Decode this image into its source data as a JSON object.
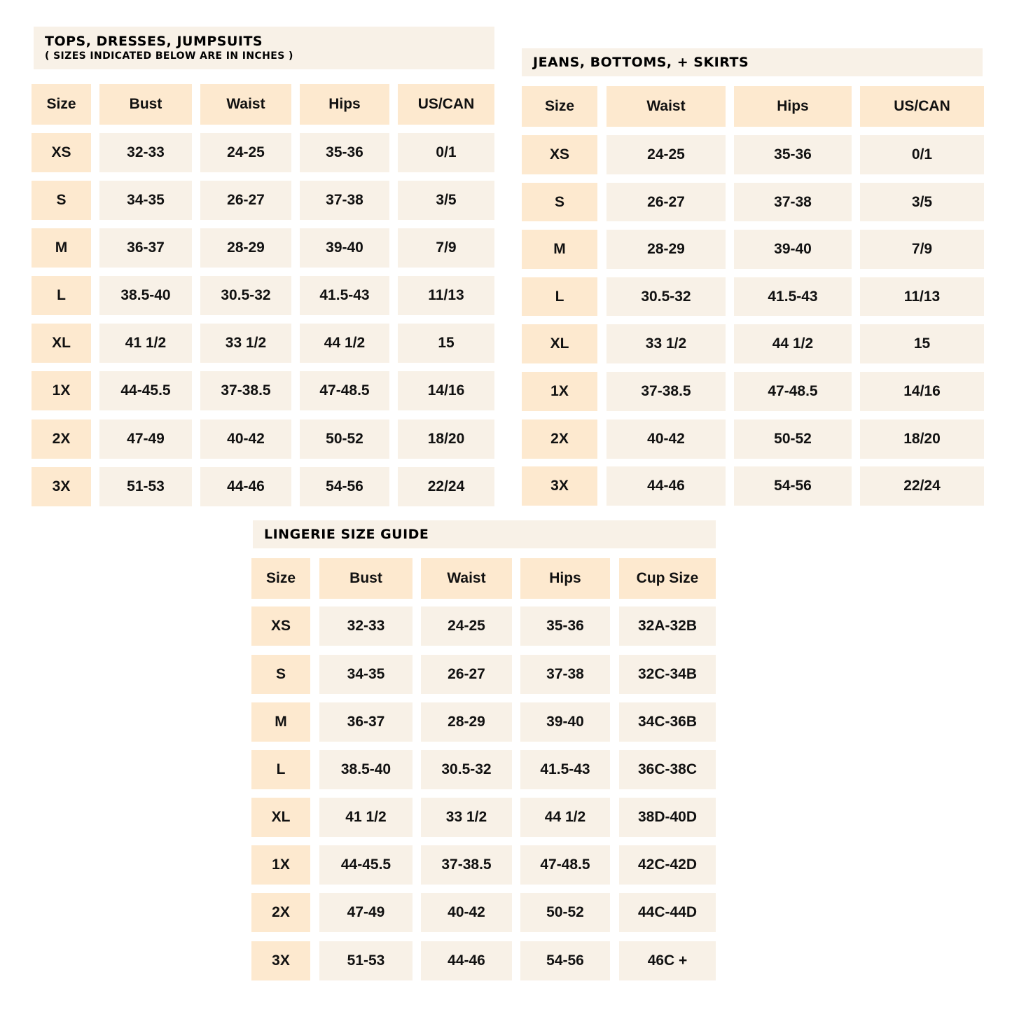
{
  "colors": {
    "header_cell": "#fde9cf",
    "body_cell": "#f8f1e7",
    "title_bg": "#f8f1e7"
  },
  "tables": [
    {
      "title": "TOPS, DRESSES, JUMPSUITS",
      "subtitle": "( SIZES INDICATED BELOW ARE IN INCHES )",
      "headers": [
        "Size",
        "Bust",
        "Waist",
        "Hips",
        "US/CAN"
      ],
      "rows": [
        [
          "XS",
          "32-33",
          "24-25",
          "35-36",
          "0/1"
        ],
        [
          "S",
          "34-35",
          "26-27",
          "37-38",
          "3/5"
        ],
        [
          "M",
          "36-37",
          "28-29",
          "39-40",
          "7/9"
        ],
        [
          "L",
          "38.5-40",
          "30.5-32",
          "41.5-43",
          "11/13"
        ],
        [
          "XL",
          "41 1/2",
          "33 1/2",
          "44 1/2",
          "15"
        ],
        [
          "1X",
          "44-45.5",
          "37-38.5",
          "47-48.5",
          "14/16"
        ],
        [
          "2X",
          "47-49",
          "40-42",
          "50-52",
          "18/20"
        ],
        [
          "3X",
          "51-53",
          "44-46",
          "54-56",
          "22/24"
        ]
      ]
    },
    {
      "title": "JEANS, BOTTOMS, + SKIRTS",
      "headers": [
        "Size",
        "Waist",
        "Hips",
        "US/CAN"
      ],
      "rows": [
        [
          "XS",
          "24-25",
          "35-36",
          "0/1"
        ],
        [
          "S",
          "26-27",
          "37-38",
          "3/5"
        ],
        [
          "M",
          "28-29",
          "39-40",
          "7/9"
        ],
        [
          "L",
          "30.5-32",
          "41.5-43",
          "11/13"
        ],
        [
          "XL",
          "33 1/2",
          "44 1/2",
          "15"
        ],
        [
          "1X",
          "37-38.5",
          "47-48.5",
          "14/16"
        ],
        [
          "2X",
          "40-42",
          "50-52",
          "18/20"
        ],
        [
          "3X",
          "44-46",
          "54-56",
          "22/24"
        ]
      ]
    },
    {
      "title": "LINGERIE SIZE GUIDE",
      "headers": [
        "Size",
        "Bust",
        "Waist",
        "Hips",
        "Cup Size"
      ],
      "rows": [
        [
          "XS",
          "32-33",
          "24-25",
          "35-36",
          "32A-32B"
        ],
        [
          "S",
          "34-35",
          "26-27",
          "37-38",
          "32C-34B"
        ],
        [
          "M",
          "36-37",
          "28-29",
          "39-40",
          "34C-36B"
        ],
        [
          "L",
          "38.5-40",
          "30.5-32",
          "41.5-43",
          "36C-38C"
        ],
        [
          "XL",
          "41 1/2",
          "33 1/2",
          "44 1/2",
          "38D-40D"
        ],
        [
          "1X",
          "44-45.5",
          "37-38.5",
          "47-48.5",
          "42C-42D"
        ],
        [
          "2X",
          "47-49",
          "40-42",
          "50-52",
          "44C-44D"
        ],
        [
          "3X",
          "51-53",
          "44-46",
          "54-56",
          "46C +"
        ]
      ]
    }
  ]
}
